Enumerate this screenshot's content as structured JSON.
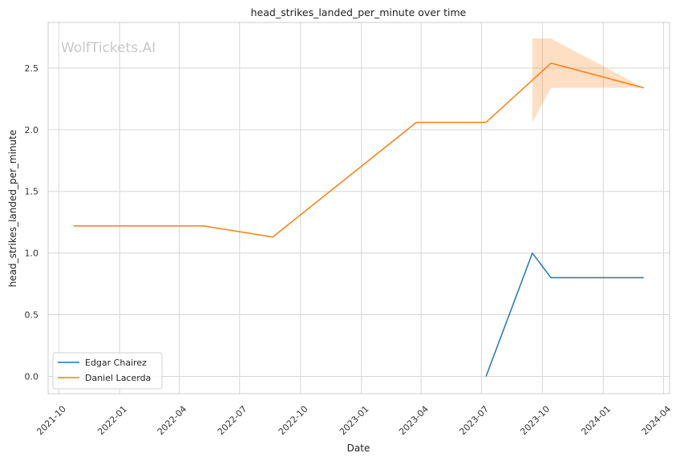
{
  "chart_data": {
    "type": "line",
    "title": "head_strikes_landed_per_minute over time",
    "xlabel": "Date",
    "ylabel": "head_strikes_landed_per_minute",
    "watermark": "WolfTickets.AI",
    "x_ticks": [
      "2021-10",
      "2022-01",
      "2022-04",
      "2022-07",
      "2022-10",
      "2023-01",
      "2023-04",
      "2023-07",
      "2023-10",
      "2024-01",
      "2024-04"
    ],
    "y_ticks": [
      "0.0",
      "0.5",
      "1.0",
      "1.5",
      "2.0",
      "2.5"
    ],
    "xlim": [
      "2021-09-15",
      "2024-04-10"
    ],
    "ylim": [
      -0.14,
      2.87
    ],
    "grid": true,
    "legend_position": "lower-left",
    "series": [
      {
        "name": "Edgar Chairez",
        "color": "#1f77b4",
        "points": [
          {
            "x": "2023-07-08",
            "y": 0.0
          },
          {
            "x": "2023-09-16",
            "y": 1.0
          },
          {
            "x": "2023-10-14",
            "y": 0.8
          },
          {
            "x": "2024-03-02",
            "y": 0.8
          }
        ]
      },
      {
        "name": "Daniel Lacerda",
        "color": "#ff7f0e",
        "points": [
          {
            "x": "2021-10-23",
            "y": 1.22
          },
          {
            "x": "2022-05-07",
            "y": 1.22
          },
          {
            "x": "2022-08-20",
            "y": 1.13
          },
          {
            "x": "2023-03-25",
            "y": 2.06
          },
          {
            "x": "2023-07-08",
            "y": 2.06
          },
          {
            "x": "2023-10-14",
            "y": 2.54
          },
          {
            "x": "2024-03-02",
            "y": 2.34
          }
        ],
        "band": [
          {
            "x": "2023-09-16",
            "low": 2.06,
            "high": 2.74
          },
          {
            "x": "2023-10-14",
            "low": 2.34,
            "high": 2.74
          },
          {
            "x": "2024-03-02",
            "low": 2.34,
            "high": 2.34
          }
        ]
      }
    ]
  }
}
